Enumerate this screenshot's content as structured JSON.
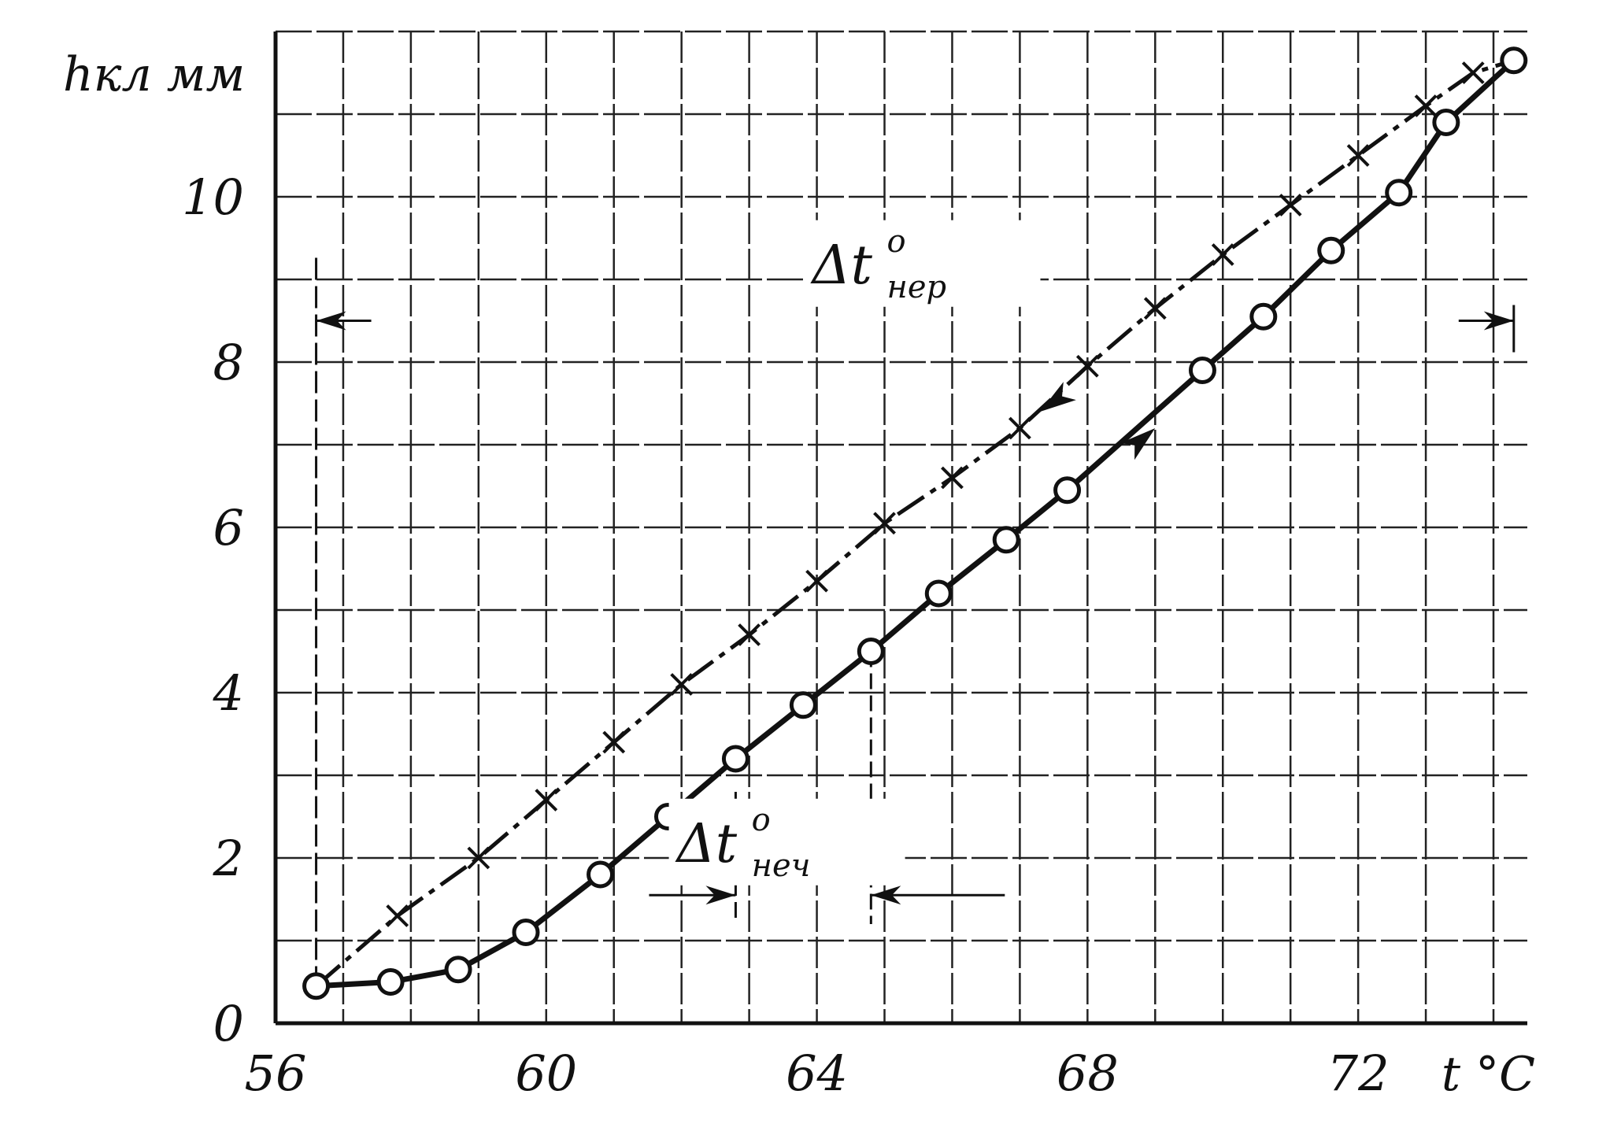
{
  "chart_data": {
    "type": "line",
    "ylabel": "hкл мм",
    "xlabel": "t °C",
    "xlim": [
      56,
      74.5
    ],
    "ylim": [
      0,
      12
    ],
    "x_ticks": [
      "56",
      "60",
      "64",
      "68",
      "72"
    ],
    "y_ticks": [
      "0",
      "2",
      "4",
      "6",
      "8",
      "10"
    ],
    "grid": true,
    "series": [
      {
        "style": "solid-circles",
        "points": [
          [
            56.6,
            0.45
          ],
          [
            57.7,
            0.5
          ],
          [
            58.7,
            0.65
          ],
          [
            59.7,
            1.1
          ],
          [
            60.8,
            1.8
          ],
          [
            61.8,
            2.5
          ],
          [
            62.8,
            3.2
          ],
          [
            63.8,
            3.85
          ],
          [
            64.8,
            4.5
          ],
          [
            65.8,
            5.2
          ],
          [
            66.8,
            5.85
          ],
          [
            67.7,
            6.45
          ],
          [
            69.7,
            7.9
          ],
          [
            70.6,
            8.55
          ],
          [
            71.6,
            9.35
          ],
          [
            72.6,
            10.05
          ],
          [
            73.3,
            10.9
          ],
          [
            74.3,
            11.65
          ]
        ]
      },
      {
        "style": "dashed-crosses",
        "points": [
          [
            56.6,
            0.45
          ],
          [
            57.8,
            1.3
          ],
          [
            59.0,
            2.0
          ],
          [
            60.0,
            2.7
          ],
          [
            61.0,
            3.4
          ],
          [
            62.0,
            4.1
          ],
          [
            63.0,
            4.7
          ],
          [
            64.0,
            5.35
          ],
          [
            65.0,
            6.05
          ],
          [
            66.0,
            6.6
          ],
          [
            67.0,
            7.2
          ],
          [
            68.0,
            7.95
          ],
          [
            69.0,
            8.65
          ],
          [
            70.0,
            9.3
          ],
          [
            71.0,
            9.9
          ],
          [
            72.0,
            10.5
          ],
          [
            73.0,
            11.1
          ],
          [
            73.7,
            11.5
          ],
          [
            74.3,
            11.65
          ]
        ]
      }
    ],
    "annotations": [
      {
        "main": "Δt",
        "sup": "o",
        "sub": "нер",
        "x": 65.5,
        "y": 9.05
      },
      {
        "main": "Δt",
        "sup": "o",
        "sub": "неч",
        "x": 63.5,
        "y": 2.05
      }
    ],
    "brackets": [
      {
        "y": 8.5,
        "from": 56.6,
        "to": 74.3
      },
      {
        "y": 1.55,
        "from": 62.8,
        "to": 64.8
      }
    ]
  }
}
